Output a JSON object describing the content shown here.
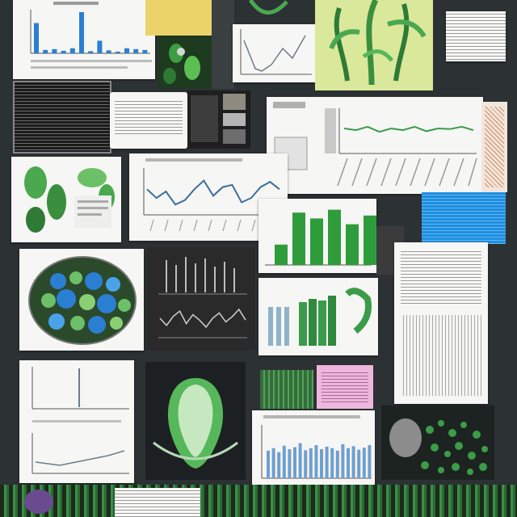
{
  "colors": {
    "board": "#2c3134",
    "board_dark": "#1d2022",
    "paper": "#f6f6f4",
    "green": "#2f9c3c",
    "light_green": "#d9e89a",
    "blue": "#2a7fd3",
    "sky_blue": "#1f8fe0",
    "pink": "#eeb6dd",
    "dark_panel": "#2a2a2a"
  },
  "bars_top": [
    0.72,
    0.08,
    0.1,
    0.06,
    0.12,
    0.98,
    0.05,
    0.3,
    0.07,
    0.04,
    0.12,
    0.1,
    0.08
  ],
  "bars_bottom": [
    0.55,
    0.6,
    0.52,
    0.65,
    0.58,
    0.62,
    0.7,
    0.56,
    0.6,
    0.66,
    0.58,
    0.63,
    0.6,
    0.55,
    0.68,
    0.6,
    0.64,
    0.57,
    0.61,
    0.66
  ],
  "bars_green": [
    0.35,
    0.9,
    0.8,
    0.95,
    0.7,
    0.85
  ],
  "wave_blue": [
    0.55,
    0.35,
    0.5,
    0.2,
    0.3,
    0.55,
    0.75,
    0.4,
    0.6,
    0.65,
    0.25,
    0.35,
    0.6,
    0.72,
    0.55
  ],
  "wave_green": [
    0.5,
    0.45,
    0.55,
    0.4,
    0.5,
    0.45,
    0.55,
    0.42,
    0.5,
    0.48,
    0.55,
    0.45
  ],
  "wave_dark": [
    0.5,
    0.3,
    0.55,
    0.7,
    0.35,
    0.6,
    0.45,
    0.25,
    0.5,
    0.65,
    0.4,
    0.55,
    0.75,
    0.45
  ]
}
